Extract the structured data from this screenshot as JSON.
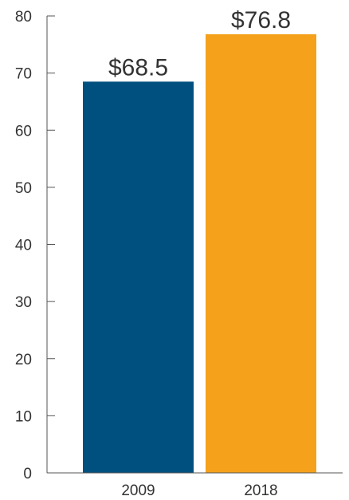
{
  "chart_data": {
    "type": "bar",
    "categories": [
      "2009",
      "2018"
    ],
    "values": [
      68.5,
      76.8
    ],
    "data_labels": [
      "$68.5",
      "$76.8"
    ],
    "bar_colors": [
      "#00507f",
      "#f5a11c"
    ],
    "ylim": [
      0,
      80
    ],
    "yticks": [
      0,
      10,
      20,
      30,
      40,
      50,
      60,
      70,
      80
    ],
    "grid": false,
    "legend": "none"
  }
}
